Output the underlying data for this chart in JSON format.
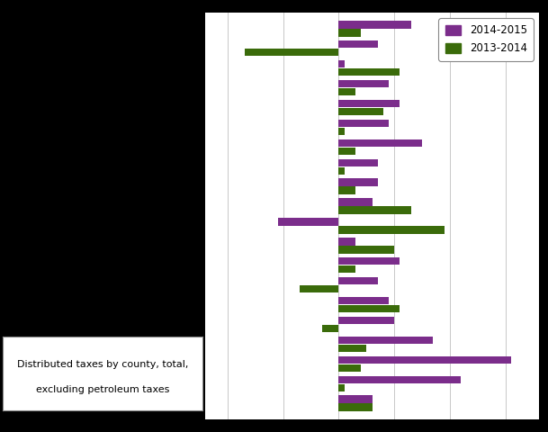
{
  "series_2015": [
    6.5,
    3.5,
    0.5,
    4.5,
    5.5,
    4.5,
    7.5,
    3.5,
    3.5,
    3.0,
    -5.5,
    1.5,
    5.5,
    3.5,
    4.5,
    5.0,
    8.5,
    15.5,
    11.0,
    3.0
  ],
  "series_2014": [
    2.0,
    -8.5,
    5.5,
    1.5,
    4.0,
    0.5,
    1.5,
    0.5,
    1.5,
    6.5,
    9.5,
    5.0,
    1.5,
    -3.5,
    5.5,
    -1.5,
    2.5,
    2.0,
    0.5,
    3.0
  ],
  "color_2015": "#7B2D8B",
  "color_2014": "#3A6B0A",
  "xlim": [
    -12,
    18
  ],
  "xticks": [
    -10,
    -5,
    0,
    5,
    10,
    15
  ],
  "note_line1": "Distributed taxes by county, total,",
  "note_line2": "excluding petroleum taxes",
  "legend_2015": "2014-2015",
  "legend_2014": "2013-2014",
  "background_color": "#FFFFFF",
  "grid_color": "#C8C8C8",
  "bar_height": 0.38,
  "bar_gap": 0.03,
  "n_groups": 20
}
